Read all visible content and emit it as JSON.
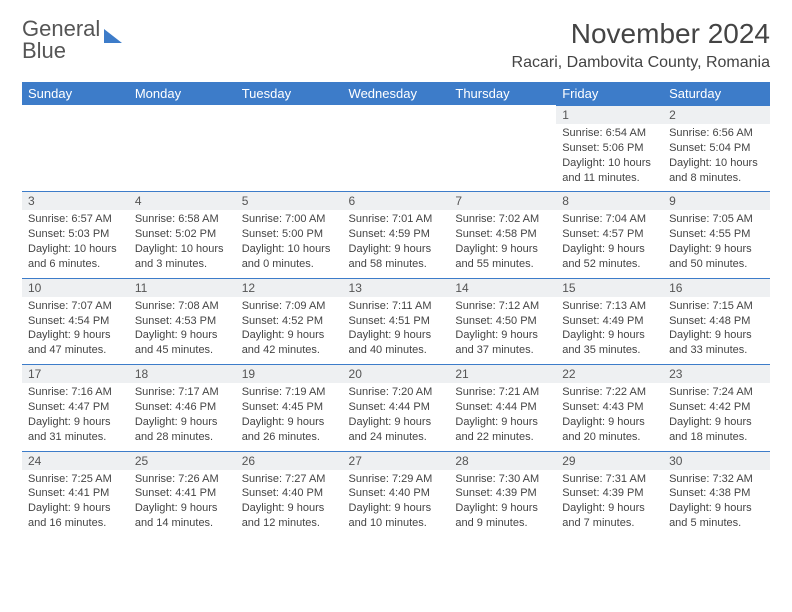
{
  "brand": {
    "line1": "General",
    "line2": "Blue"
  },
  "title": "November 2024",
  "location": "Racari, Dambovita County, Romania",
  "colors": {
    "header_bg": "#3d7cc9",
    "header_text": "#ffffff",
    "daynum_bg": "#eef0f2",
    "row_border": "#3d7cc9",
    "body_text": "#444444",
    "background": "#ffffff"
  },
  "typography": {
    "title_fontsize": 28,
    "location_fontsize": 16,
    "header_fontsize": 13,
    "daynum_fontsize": 12,
    "cell_fontsize": 11
  },
  "weekdays": [
    "Sunday",
    "Monday",
    "Tuesday",
    "Wednesday",
    "Thursday",
    "Friday",
    "Saturday"
  ],
  "weeks": [
    [
      null,
      null,
      null,
      null,
      null,
      {
        "n": "1",
        "sr": "6:54 AM",
        "ss": "5:06 PM",
        "dl": "10 hours and 11 minutes."
      },
      {
        "n": "2",
        "sr": "6:56 AM",
        "ss": "5:04 PM",
        "dl": "10 hours and 8 minutes."
      }
    ],
    [
      {
        "n": "3",
        "sr": "6:57 AM",
        "ss": "5:03 PM",
        "dl": "10 hours and 6 minutes."
      },
      {
        "n": "4",
        "sr": "6:58 AM",
        "ss": "5:02 PM",
        "dl": "10 hours and 3 minutes."
      },
      {
        "n": "5",
        "sr": "7:00 AM",
        "ss": "5:00 PM",
        "dl": "10 hours and 0 minutes."
      },
      {
        "n": "6",
        "sr": "7:01 AM",
        "ss": "4:59 PM",
        "dl": "9 hours and 58 minutes."
      },
      {
        "n": "7",
        "sr": "7:02 AM",
        "ss": "4:58 PM",
        "dl": "9 hours and 55 minutes."
      },
      {
        "n": "8",
        "sr": "7:04 AM",
        "ss": "4:57 PM",
        "dl": "9 hours and 52 minutes."
      },
      {
        "n": "9",
        "sr": "7:05 AM",
        "ss": "4:55 PM",
        "dl": "9 hours and 50 minutes."
      }
    ],
    [
      {
        "n": "10",
        "sr": "7:07 AM",
        "ss": "4:54 PM",
        "dl": "9 hours and 47 minutes."
      },
      {
        "n": "11",
        "sr": "7:08 AM",
        "ss": "4:53 PM",
        "dl": "9 hours and 45 minutes."
      },
      {
        "n": "12",
        "sr": "7:09 AM",
        "ss": "4:52 PM",
        "dl": "9 hours and 42 minutes."
      },
      {
        "n": "13",
        "sr": "7:11 AM",
        "ss": "4:51 PM",
        "dl": "9 hours and 40 minutes."
      },
      {
        "n": "14",
        "sr": "7:12 AM",
        "ss": "4:50 PM",
        "dl": "9 hours and 37 minutes."
      },
      {
        "n": "15",
        "sr": "7:13 AM",
        "ss": "4:49 PM",
        "dl": "9 hours and 35 minutes."
      },
      {
        "n": "16",
        "sr": "7:15 AM",
        "ss": "4:48 PM",
        "dl": "9 hours and 33 minutes."
      }
    ],
    [
      {
        "n": "17",
        "sr": "7:16 AM",
        "ss": "4:47 PM",
        "dl": "9 hours and 31 minutes."
      },
      {
        "n": "18",
        "sr": "7:17 AM",
        "ss": "4:46 PM",
        "dl": "9 hours and 28 minutes."
      },
      {
        "n": "19",
        "sr": "7:19 AM",
        "ss": "4:45 PM",
        "dl": "9 hours and 26 minutes."
      },
      {
        "n": "20",
        "sr": "7:20 AM",
        "ss": "4:44 PM",
        "dl": "9 hours and 24 minutes."
      },
      {
        "n": "21",
        "sr": "7:21 AM",
        "ss": "4:44 PM",
        "dl": "9 hours and 22 minutes."
      },
      {
        "n": "22",
        "sr": "7:22 AM",
        "ss": "4:43 PM",
        "dl": "9 hours and 20 minutes."
      },
      {
        "n": "23",
        "sr": "7:24 AM",
        "ss": "4:42 PM",
        "dl": "9 hours and 18 minutes."
      }
    ],
    [
      {
        "n": "24",
        "sr": "7:25 AM",
        "ss": "4:41 PM",
        "dl": "9 hours and 16 minutes."
      },
      {
        "n": "25",
        "sr": "7:26 AM",
        "ss": "4:41 PM",
        "dl": "9 hours and 14 minutes."
      },
      {
        "n": "26",
        "sr": "7:27 AM",
        "ss": "4:40 PM",
        "dl": "9 hours and 12 minutes."
      },
      {
        "n": "27",
        "sr": "7:29 AM",
        "ss": "4:40 PM",
        "dl": "9 hours and 10 minutes."
      },
      {
        "n": "28",
        "sr": "7:30 AM",
        "ss": "4:39 PM",
        "dl": "9 hours and 9 minutes."
      },
      {
        "n": "29",
        "sr": "7:31 AM",
        "ss": "4:39 PM",
        "dl": "9 hours and 7 minutes."
      },
      {
        "n": "30",
        "sr": "7:32 AM",
        "ss": "4:38 PM",
        "dl": "9 hours and 5 minutes."
      }
    ]
  ],
  "labels": {
    "sunrise": "Sunrise:",
    "sunset": "Sunset:",
    "daylight": "Daylight:"
  }
}
